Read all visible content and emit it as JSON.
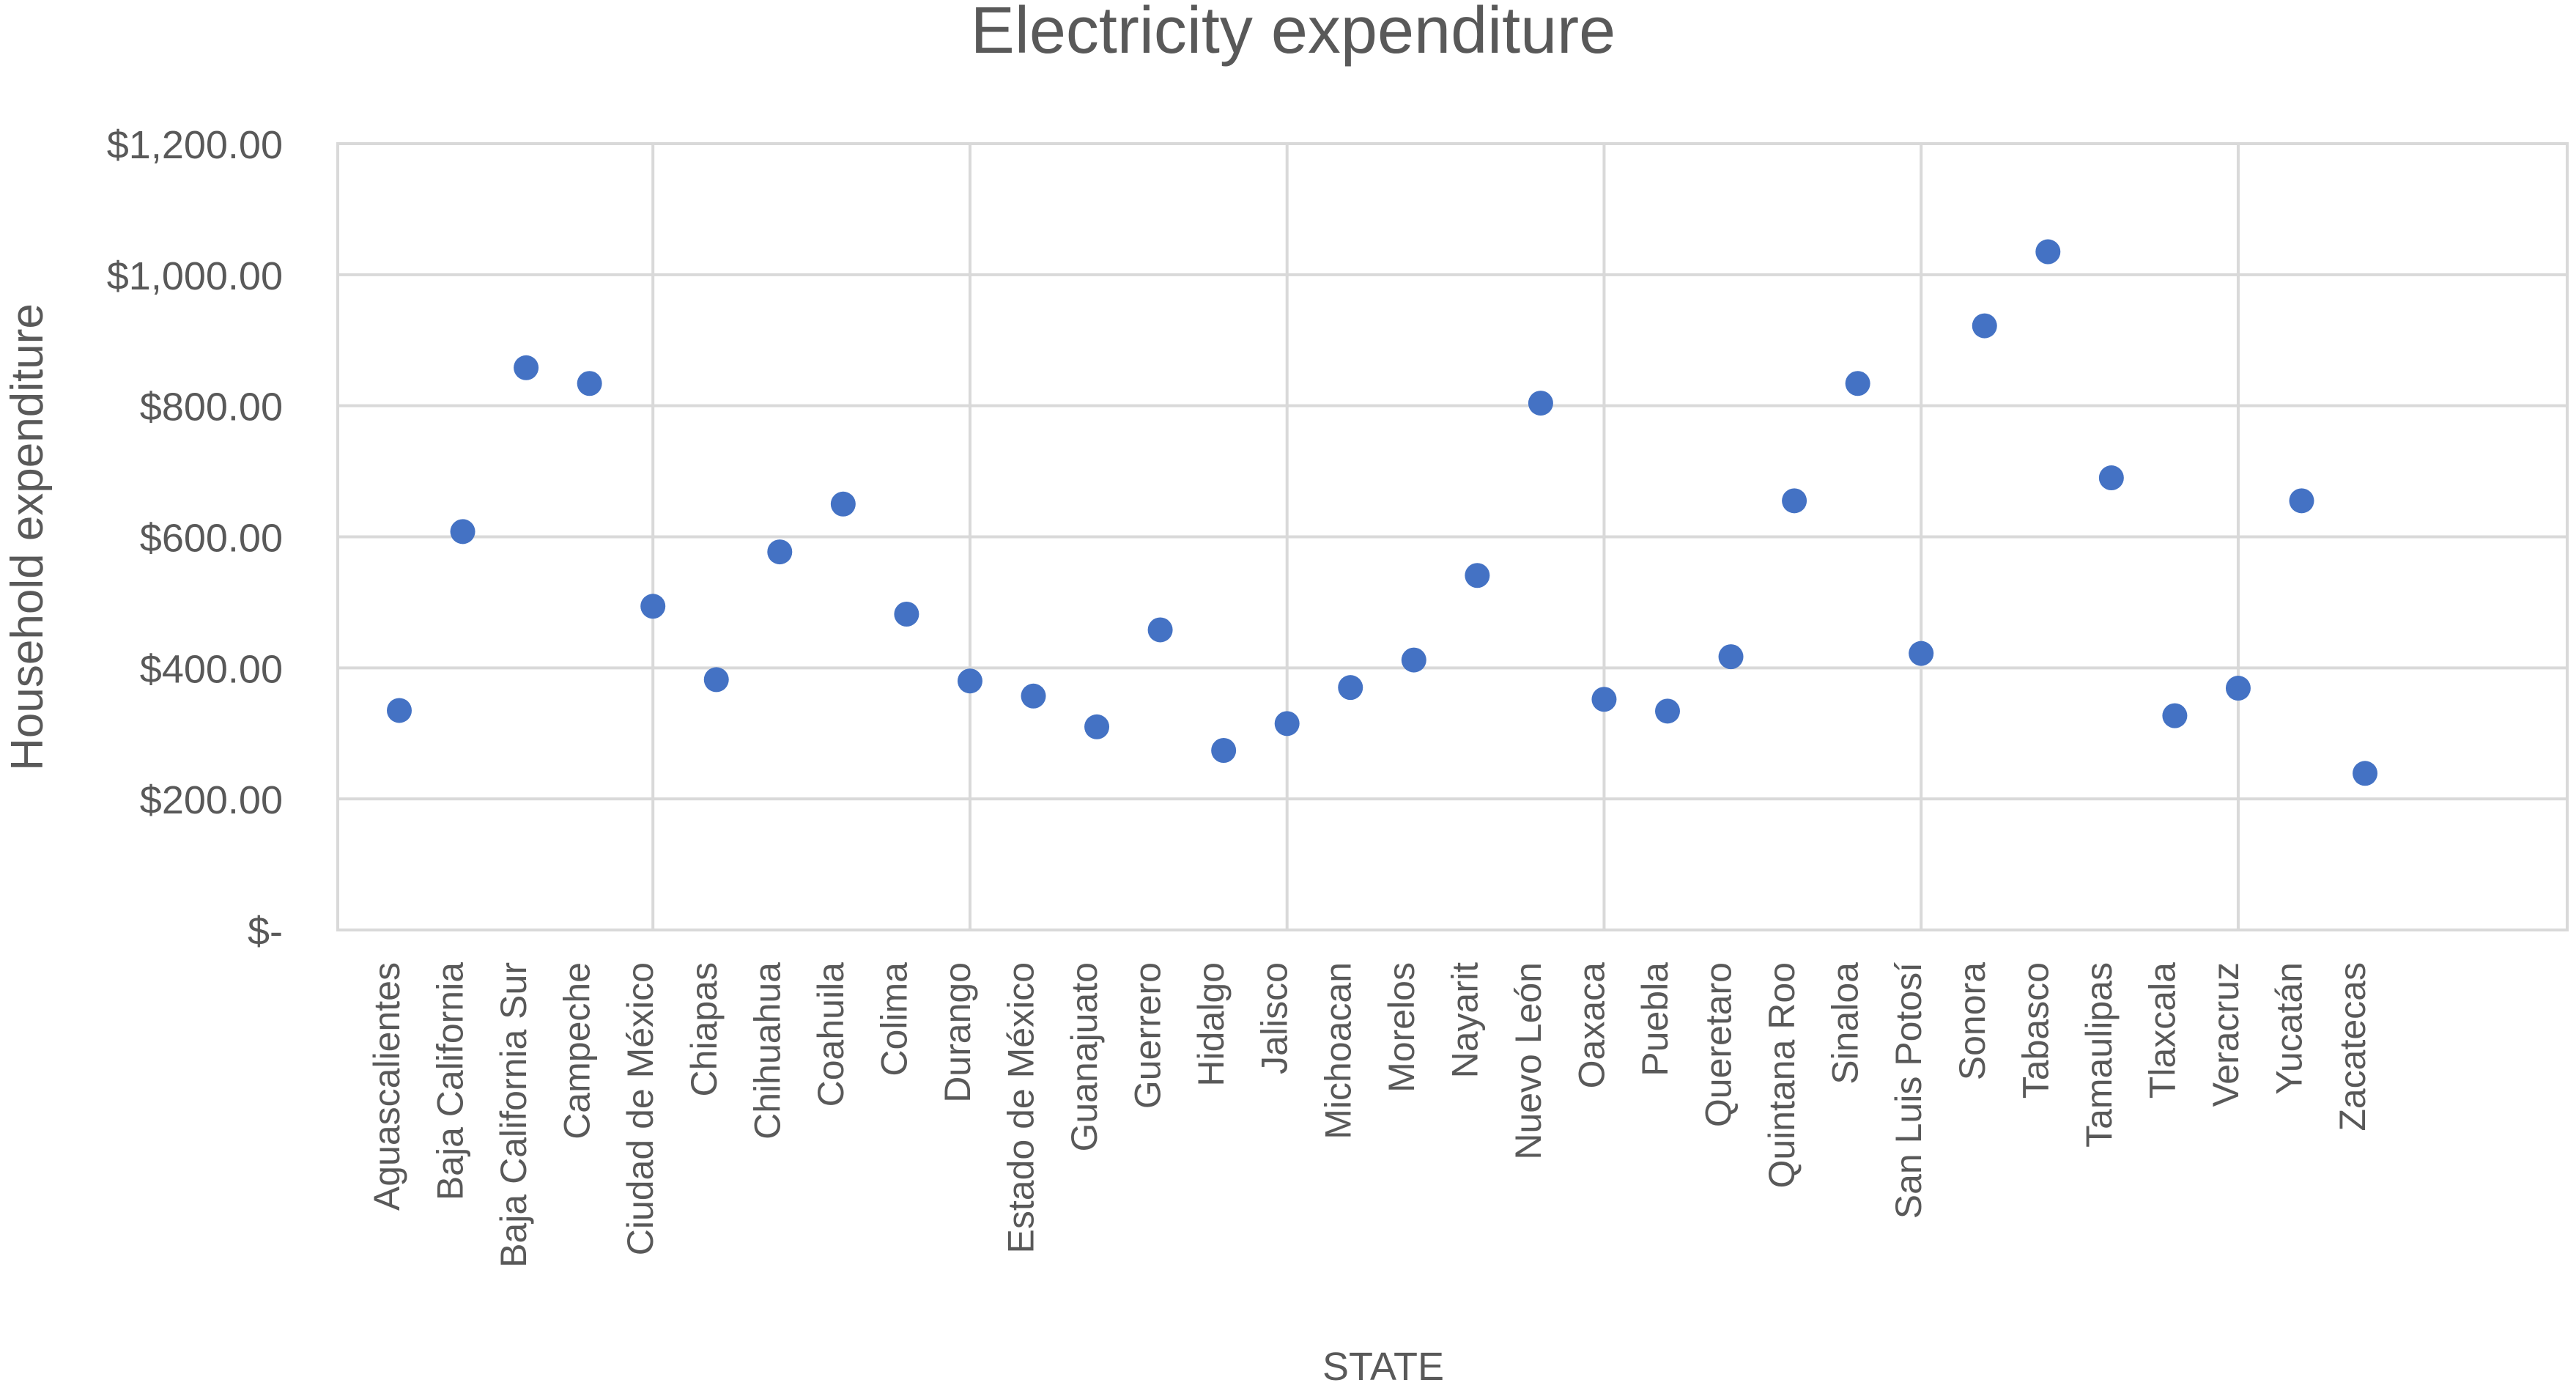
{
  "chart_data": {
    "type": "scatter",
    "title": "Electricity expenditure",
    "xlabel": "STATE",
    "ylabel": "Household expenditure",
    "ylim": [
      0,
      1200
    ],
    "yticks": [
      0,
      200,
      400,
      600,
      800,
      1000,
      1200
    ],
    "ytick_labels": [
      "$-",
      "$200.00",
      "$400.00",
      "$600.00",
      "$800.00",
      "$1,000.00",
      "$1,200.00"
    ],
    "grid": true,
    "marker_color": "#4472C4",
    "categories": [
      "Aguascalientes",
      "Baja California",
      "Baja California Sur",
      "Campeche",
      "Ciudad de México",
      "Chiapas",
      "Chihuahua",
      "Coahuila",
      "Colima",
      "Durango",
      "Estado de México",
      "Guanajuato",
      "Guerrero",
      "Hidalgo",
      "Jalisco",
      "Michoacan",
      "Morelos",
      "Nayarit",
      "Nuevo León",
      "Oaxaca",
      "Puebla",
      "Queretaro",
      "Quintana Roo",
      "Sinaloa",
      "San Luis Potosí",
      "Sonora",
      "Tabasco",
      "Tamaulipas",
      "Tlaxcala",
      "Veracruz",
      "Yucatán",
      "Zacatecas"
    ],
    "values": [
      335,
      608,
      858,
      834,
      494,
      382,
      577,
      650,
      482,
      380,
      357,
      310,
      458,
      274,
      315,
      370,
      412,
      541,
      804,
      352,
      334,
      417,
      655,
      834,
      422,
      922,
      1035,
      690,
      327,
      369,
      655,
      239
    ]
  }
}
